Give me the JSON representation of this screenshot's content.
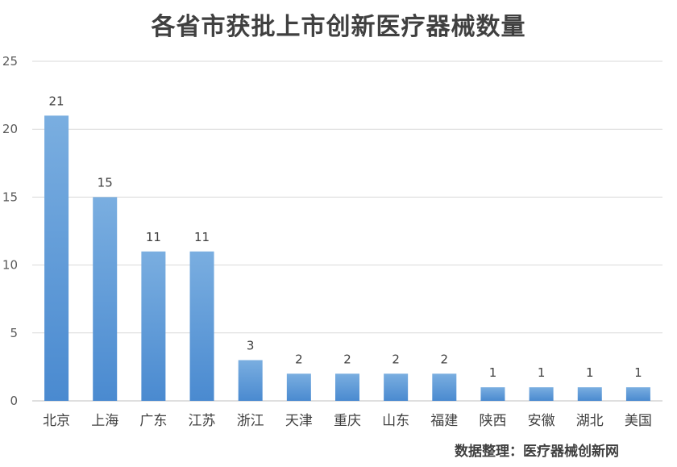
{
  "chart_data": {
    "type": "bar",
    "title": "各省市获批上市创新医疗器械数量",
    "categories": [
      "北京",
      "上海",
      "广东",
      "江苏",
      "浙江",
      "天津",
      "重庆",
      "山东",
      "福建",
      "陕西",
      "安徽",
      "湖北",
      "美国"
    ],
    "values": [
      21,
      15,
      11,
      11,
      3,
      2,
      2,
      2,
      2,
      1,
      1,
      1,
      1
    ],
    "ylim": [
      0,
      25
    ],
    "yticks": [
      0,
      5,
      10,
      15,
      20,
      25
    ],
    "grid": true,
    "data_labels": true,
    "bar_color_top": "#7aaee0",
    "bar_color_bottom": "#4a8ad0"
  },
  "source_note": "数据整理：医疗器械创新网"
}
